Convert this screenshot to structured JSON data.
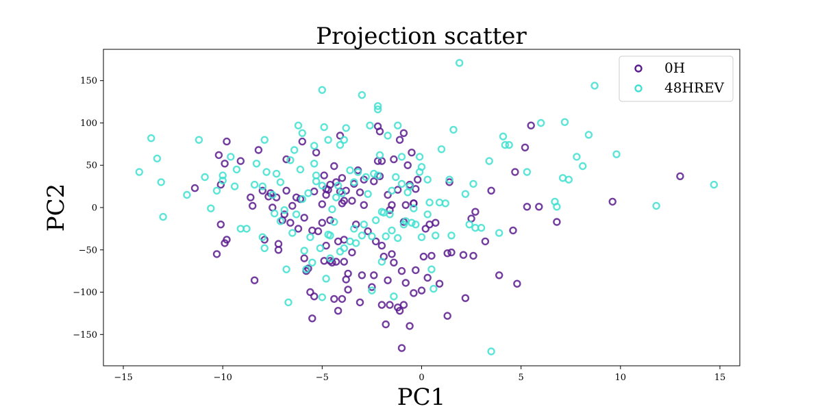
{
  "chart_data": {
    "type": "scatter",
    "title": "Projection scatter",
    "xlabel": "PC1",
    "ylabel": "PC2",
    "xlim": [
      -16,
      16
    ],
    "ylim": [
      -187,
      187
    ],
    "xticks": [
      -15,
      -10,
      -5,
      0,
      5,
      10,
      15
    ],
    "yticks": [
      -150,
      -100,
      -50,
      0,
      50,
      100,
      150
    ],
    "grid": false,
    "legend_position": "top-right",
    "series": [
      {
        "name": "0H",
        "color": "#5b1a8e",
        "points": [
          [
            -10.2,
            62
          ],
          [
            -9.8,
            78
          ],
          [
            -9.9,
            52
          ],
          [
            -9.1,
            55
          ],
          [
            -10.1,
            -20
          ],
          [
            -10.3,
            -55
          ],
          [
            -9.8,
            -38
          ],
          [
            -9.9,
            -42
          ],
          [
            -8.4,
            -86
          ],
          [
            -8.2,
            68
          ],
          [
            -8.0,
            20
          ],
          [
            -7.9,
            -38
          ],
          [
            -7.7,
            13
          ],
          [
            -7.6,
            17
          ],
          [
            -7.5,
            0
          ],
          [
            -7.3,
            12
          ],
          [
            -7.2,
            -43
          ],
          [
            -7.2,
            -50
          ],
          [
            -7.0,
            -15
          ],
          [
            -6.9,
            -8
          ],
          [
            -6.8,
            57
          ],
          [
            -6.6,
            -18
          ],
          [
            -6.5,
            2
          ],
          [
            -6.2,
            -25
          ],
          [
            -6.1,
            10
          ],
          [
            -6.0,
            78
          ],
          [
            -5.9,
            -12
          ],
          [
            -5.9,
            -60
          ],
          [
            -5.7,
            -72
          ],
          [
            -5.6,
            -100
          ],
          [
            -5.5,
            -131
          ],
          [
            -5.4,
            -105
          ],
          [
            -5.3,
            65
          ],
          [
            -5.2,
            -28
          ],
          [
            -5.0,
            -18
          ],
          [
            -4.9,
            -63
          ],
          [
            -4.8,
            -45
          ],
          [
            -4.7,
            21
          ],
          [
            -4.6,
            -15
          ],
          [
            -4.6,
            -63
          ],
          [
            -4.5,
            -65
          ],
          [
            -4.4,
            -108
          ],
          [
            -4.3,
            -64
          ],
          [
            -4.2,
            -40
          ],
          [
            -4.2,
            -122
          ],
          [
            -4.1,
            85
          ],
          [
            -4.0,
            -108
          ],
          [
            -3.9,
            -64
          ],
          [
            -3.9,
            -38
          ],
          [
            -3.8,
            -85
          ],
          [
            -3.7,
            -78
          ],
          [
            -3.7,
            -97
          ],
          [
            -3.5,
            -53
          ],
          [
            -3.3,
            -20
          ],
          [
            -3.1,
            -112
          ],
          [
            -2.9,
            3
          ],
          [
            -2.7,
            -28
          ],
          [
            -2.5,
            -94
          ],
          [
            -2.4,
            -80
          ],
          [
            -2.3,
            -40
          ],
          [
            -2.2,
            96
          ],
          [
            -2.1,
            90
          ],
          [
            -2.0,
            -115
          ],
          [
            -2.0,
            -45
          ],
          [
            -1.9,
            -58
          ],
          [
            -1.8,
            -138
          ],
          [
            -1.7,
            -86
          ],
          [
            -1.6,
            -115
          ],
          [
            -1.5,
            -55
          ],
          [
            -1.4,
            -65
          ],
          [
            -1.2,
            -118
          ],
          [
            -1.1,
            -122
          ],
          [
            -1.0,
            -166
          ],
          [
            -1.0,
            -75
          ],
          [
            -0.9,
            -115
          ],
          [
            -0.8,
            -89
          ],
          [
            -0.6,
            -140
          ],
          [
            -0.5,
            65
          ],
          [
            -0.4,
            -101
          ],
          [
            -0.3,
            -74
          ],
          [
            -0.2,
            33
          ],
          [
            0.0,
            -98
          ],
          [
            0.1,
            -58
          ],
          [
            0.2,
            -25
          ],
          [
            0.3,
            -83
          ],
          [
            0.4,
            -20
          ],
          [
            0.5,
            -57
          ],
          [
            0.7,
            -18
          ],
          [
            0.9,
            -90
          ],
          [
            1.3,
            -54
          ],
          [
            1.3,
            -128
          ],
          [
            1.4,
            30
          ],
          [
            1.5,
            -53
          ],
          [
            2.1,
            -56
          ],
          [
            2.2,
            -107
          ],
          [
            2.5,
            -13
          ],
          [
            2.6,
            -57
          ],
          [
            2.7,
            -5
          ],
          [
            3.2,
            -40
          ],
          [
            3.5,
            20
          ],
          [
            3.9,
            -80
          ],
          [
            4.6,
            -27
          ],
          [
            4.8,
            -90
          ],
          [
            4.7,
            42
          ],
          [
            5.2,
            71
          ],
          [
            5.5,
            97
          ],
          [
            5.3,
            1
          ],
          [
            5.9,
            1
          ],
          [
            6.8,
            -17
          ],
          [
            9.6,
            7
          ],
          [
            13.0,
            37
          ],
          [
            -4.9,
            38
          ],
          [
            -4.3,
            30
          ],
          [
            -3.8,
            20
          ],
          [
            -3.2,
            44
          ],
          [
            -2.9,
            33
          ],
          [
            -2.0,
            55
          ],
          [
            -1.4,
            57
          ],
          [
            -1.1,
            80
          ],
          [
            -0.9,
            88
          ],
          [
            -0.7,
            50
          ],
          [
            -0.6,
            27
          ],
          [
            -0.4,
            5
          ],
          [
            -0.3,
            22
          ],
          [
            -4.6,
            27
          ],
          [
            -3.9,
            8
          ],
          [
            -4.0,
            35
          ],
          [
            -5.0,
            4
          ],
          [
            -5.4,
            19
          ],
          [
            -6.3,
            12
          ],
          [
            -6.8,
            20
          ],
          [
            -8.6,
            12
          ],
          [
            -8.5,
            2
          ],
          [
            -10.1,
            27
          ],
          [
            -11.4,
            23
          ],
          [
            -4.8,
            15
          ],
          [
            -4.4,
            49
          ],
          [
            -4.1,
            19
          ],
          [
            -4.0,
            5
          ],
          [
            -3.5,
            8
          ],
          [
            -3.1,
            18
          ],
          [
            -2.4,
            31
          ],
          [
            -2.1,
            37
          ],
          [
            -1.7,
            15
          ],
          [
            -1.5,
            3
          ],
          [
            -1.2,
            21
          ],
          [
            -0.9,
            -17
          ],
          [
            -0.8,
            3
          ],
          [
            -0.4,
            5
          ],
          [
            -4.8,
            22
          ],
          [
            -5.5,
            -27
          ],
          [
            -5.8,
            -75
          ],
          [
            -3.4,
            28
          ],
          [
            -2.2,
            55
          ],
          [
            -1.6,
            -3
          ],
          [
            -3.0,
            -80
          ]
        ]
      },
      {
        "name": "48HREV",
        "color": "#40e0d0",
        "points": [
          [
            -14.2,
            42
          ],
          [
            -13.6,
            82
          ],
          [
            -13.3,
            58
          ],
          [
            -13.1,
            30
          ],
          [
            -13.0,
            -11
          ],
          [
            -11.8,
            15
          ],
          [
            -11.2,
            80
          ],
          [
            -10.9,
            36
          ],
          [
            -10.6,
            -1
          ],
          [
            -10.3,
            20
          ],
          [
            -10.0,
            38
          ],
          [
            -10.0,
            32
          ],
          [
            -9.6,
            60
          ],
          [
            -9.4,
            25
          ],
          [
            -9.3,
            45
          ],
          [
            -9.1,
            -25
          ],
          [
            -8.8,
            -25
          ],
          [
            -8.4,
            27
          ],
          [
            -8.3,
            52
          ],
          [
            -8.0,
            25
          ],
          [
            -7.9,
            80
          ],
          [
            -7.8,
            42
          ],
          [
            -7.4,
            -7
          ],
          [
            -7.3,
            40
          ],
          [
            -7.1,
            -16
          ],
          [
            -6.9,
            -3
          ],
          [
            -6.8,
            -73
          ],
          [
            -6.7,
            -112
          ],
          [
            -6.6,
            56
          ],
          [
            -6.4,
            68
          ],
          [
            -6.2,
            97
          ],
          [
            -6.0,
            88
          ],
          [
            -5.9,
            -51
          ],
          [
            -5.8,
            -73
          ],
          [
            -5.6,
            -35
          ],
          [
            -5.5,
            -65
          ],
          [
            -5.4,
            73
          ],
          [
            -5.3,
            38
          ],
          [
            -5.1,
            -48
          ],
          [
            -5.0,
            -106
          ],
          [
            -4.9,
            95
          ],
          [
            -4.8,
            -84
          ],
          [
            -4.7,
            80
          ],
          [
            -4.6,
            -60
          ],
          [
            -4.5,
            -2
          ],
          [
            -4.4,
            -17
          ],
          [
            -4.1,
            74
          ],
          [
            -3.9,
            80
          ],
          [
            -3.8,
            94
          ],
          [
            -3.6,
            -40
          ],
          [
            -3.3,
            -42
          ],
          [
            -3.0,
            133
          ],
          [
            -2.9,
            -20
          ],
          [
            -2.6,
            97
          ],
          [
            -2.5,
            -98
          ],
          [
            -2.3,
            -15
          ],
          [
            -2.2,
            116
          ],
          [
            -2.2,
            120
          ],
          [
            -2.1,
            62
          ],
          [
            -2.0,
            -5
          ],
          [
            -1.7,
            85
          ],
          [
            -1.5,
            -27
          ],
          [
            -1.4,
            -105
          ],
          [
            -1.2,
            97
          ],
          [
            -1.0,
            60
          ],
          [
            -0.8,
            -16
          ],
          [
            -0.5,
            -18
          ],
          [
            -0.4,
            -1
          ],
          [
            -0.1,
            60
          ],
          [
            0.0,
            -35
          ],
          [
            0.3,
            33
          ],
          [
            0.3,
            -8
          ],
          [
            0.5,
            -73
          ],
          [
            0.6,
            -96
          ],
          [
            0.7,
            -33
          ],
          [
            0.9,
            6
          ],
          [
            1.0,
            69
          ],
          [
            1.2,
            5
          ],
          [
            1.4,
            33
          ],
          [
            1.5,
            -33
          ],
          [
            1.6,
            92
          ],
          [
            1.9,
            171
          ],
          [
            2.4,
            -20
          ],
          [
            2.6,
            28
          ],
          [
            2.7,
            -24
          ],
          [
            3.0,
            -24
          ],
          [
            3.4,
            55
          ],
          [
            3.5,
            -170
          ],
          [
            3.9,
            -30
          ],
          [
            4.1,
            84
          ],
          [
            4.2,
            74
          ],
          [
            4.4,
            74
          ],
          [
            5.3,
            42
          ],
          [
            6.0,
            100
          ],
          [
            6.7,
            7
          ],
          [
            6.8,
            1
          ],
          [
            7.1,
            35
          ],
          [
            7.2,
            101
          ],
          [
            7.4,
            33
          ],
          [
            7.8,
            60
          ],
          [
            8.1,
            49
          ],
          [
            8.4,
            86
          ],
          [
            8.7,
            144
          ],
          [
            9.8,
            63
          ],
          [
            11.8,
            2
          ],
          [
            14.7,
            27
          ],
          [
            -5.0,
            139
          ],
          [
            -4.3,
            12
          ],
          [
            -4.0,
            17
          ],
          [
            -3.6,
            44
          ],
          [
            -3.2,
            42
          ],
          [
            -2.7,
            16
          ],
          [
            -2.5,
            -34
          ],
          [
            -1.9,
            -6
          ],
          [
            -1.6,
            -8
          ],
          [
            -1.3,
            36
          ],
          [
            -0.9,
            -20
          ],
          [
            -0.7,
            18
          ],
          [
            -6.0,
            10
          ],
          [
            -6.5,
            -30
          ],
          [
            -7.1,
            30
          ],
          [
            -7.5,
            15
          ],
          [
            -5.3,
            31
          ],
          [
            -4.2,
            26
          ],
          [
            -3.4,
            30
          ],
          [
            -2.8,
            36
          ],
          [
            -2.2,
            38
          ],
          [
            -1.5,
            20
          ],
          [
            -1.0,
            28
          ],
          [
            -0.6,
            25
          ],
          [
            -0.1,
            42
          ],
          [
            0.4,
            6
          ],
          [
            -4.7,
            -32
          ],
          [
            -4.1,
            -52
          ],
          [
            -3.0,
            -33
          ],
          [
            -1.8,
            -34
          ],
          [
            -5.4,
            52
          ],
          [
            -5.0,
            26
          ],
          [
            -4.6,
            -33
          ],
          [
            -3.9,
            -48
          ],
          [
            -3.4,
            -25
          ],
          [
            -2.0,
            -64
          ],
          [
            -1.2,
            -36
          ],
          [
            -0.3,
            -20
          ],
          [
            -6.1,
            45
          ],
          [
            -5.7,
            17
          ],
          [
            -2.4,
            40
          ],
          [
            0.0,
            48
          ],
          [
            2.2,
            16
          ],
          [
            -8.0,
            -35
          ],
          [
            -7.9,
            -48
          ],
          [
            -6.3,
            -8
          ]
        ]
      }
    ]
  }
}
